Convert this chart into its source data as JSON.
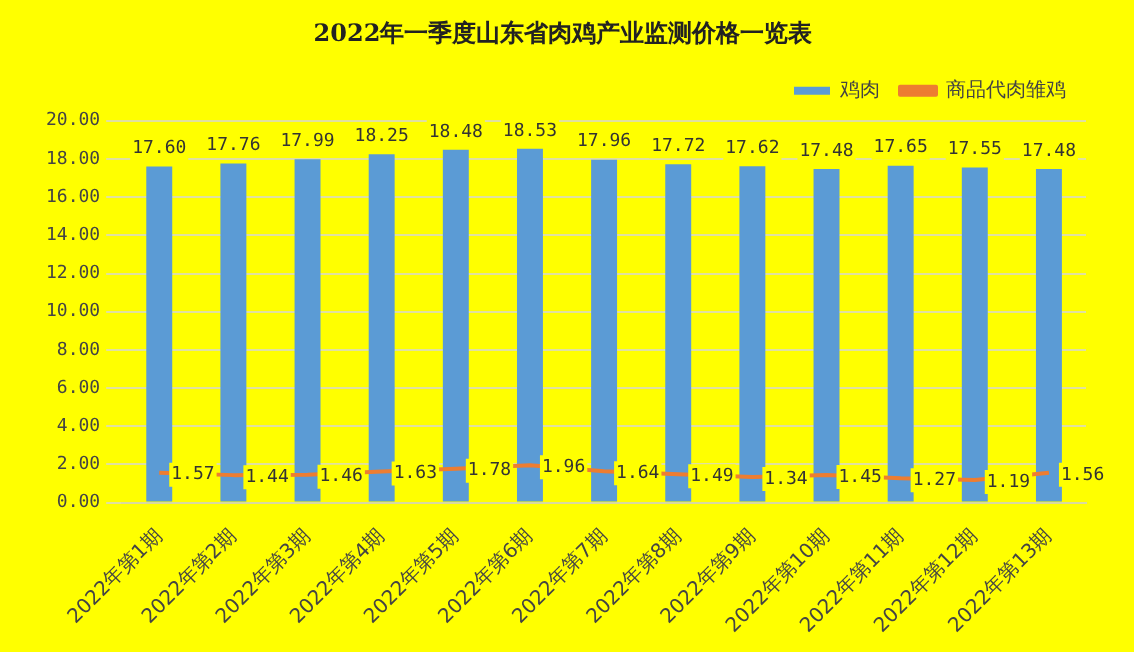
{
  "chart_data": {
    "type": "bar",
    "title": "2022年一季度山东省肉鸡产业监测价格一览表",
    "categories": [
      "2022年第1期",
      "2022年第2期",
      "2022年第3期",
      "2022年第4期",
      "2022年第5期",
      "2022年第6期",
      "2022年第7期",
      "2022年第8期",
      "2022年第9期",
      "2022年第10期",
      "2022年第11期",
      "2022年第12期",
      "2022年第13期"
    ],
    "series": [
      {
        "name": "鸡肉",
        "color": "#5b9bd5",
        "values": [
          17.6,
          17.76,
          17.99,
          18.25,
          18.48,
          18.53,
          17.96,
          17.72,
          17.62,
          17.48,
          17.65,
          17.55,
          17.48
        ],
        "value_labels": [
          "17.60",
          "17.76",
          "17.99",
          "18.25",
          "18.48",
          "18.53",
          "17.96",
          "17.72",
          "17.62",
          "17.48",
          "17.65",
          "17.55",
          "17.48"
        ]
      },
      {
        "name": "商品代肉雏鸡",
        "type": "line",
        "color": "#ed7d31",
        "values": [
          1.57,
          1.44,
          1.46,
          1.63,
          1.78,
          1.96,
          1.64,
          1.49,
          1.34,
          1.45,
          1.27,
          1.19,
          1.56
        ],
        "value_labels": [
          "1.57",
          "1.44",
          "1.46",
          "1.63",
          "1.78",
          "1.96",
          "1.64",
          "1.49",
          "1.34",
          "1.45",
          "1.27",
          "1.19",
          "1.56"
        ]
      }
    ],
    "ylim": [
      0,
      20
    ],
    "yticks": [
      {
        "value": 0,
        "label": "0.00"
      },
      {
        "value": 2,
        "label": "2.00"
      },
      {
        "value": 4,
        "label": "4.00"
      },
      {
        "value": 6,
        "label": "6.00"
      },
      {
        "value": 8,
        "label": "8.00"
      },
      {
        "value": 10,
        "label": "10.00"
      },
      {
        "value": 12,
        "label": "12.00"
      },
      {
        "value": 14,
        "label": "14.00"
      },
      {
        "value": 16,
        "label": "16.00"
      },
      {
        "value": 18,
        "label": "18.00"
      },
      {
        "value": 20,
        "label": "20.00"
      }
    ],
    "grid": "y",
    "legend": "top right",
    "marker": "none"
  }
}
